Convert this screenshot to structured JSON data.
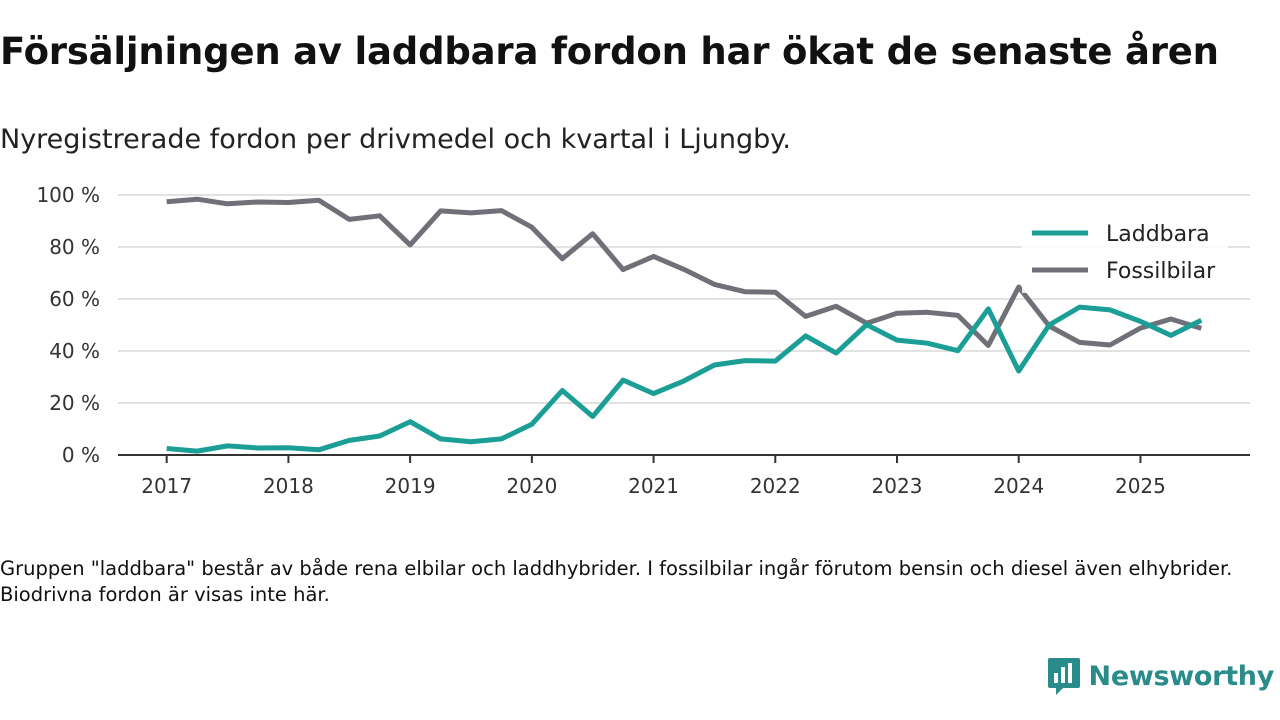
{
  "title": "Försäljningen av laddbara fordon har ökat de senaste åren",
  "subtitle": "Nyregistrerade fordon per drivmedel och kvartal i Ljungby.",
  "footnote": "Gruppen \"laddbara\" består av både rena elbilar och laddhybrider. I fossilbilar ingår förutom bensin och diesel även elhybrider. Biodrivna fordon är visas inte här.",
  "brand": {
    "name": "Newsworthy",
    "color": "#2a8c8a"
  },
  "chart_data": {
    "type": "line",
    "title": "Försäljningen av laddbara fordon har ökat de senaste åren",
    "xlabel": "",
    "ylabel": "",
    "ylim": [
      0,
      100
    ],
    "yticks": [
      0,
      20,
      40,
      60,
      80,
      100
    ],
    "ytick_labels": [
      "0 %",
      "20 %",
      "40 %",
      "60 %",
      "80 %",
      "100 %"
    ],
    "xlim": [
      2016.6,
      2025.9
    ],
    "xticks": [
      2017,
      2018,
      2019,
      2020,
      2021,
      2022,
      2023,
      2024,
      2025
    ],
    "xtick_labels": [
      "2017",
      "2018",
      "2019",
      "2020",
      "2021",
      "2022",
      "2023",
      "2024",
      "2025"
    ],
    "x": [
      2017,
      2017.25,
      2017.5,
      2017.75,
      2018,
      2018.25,
      2018.5,
      2018.75,
      2019,
      2019.25,
      2019.5,
      2019.75,
      2020,
      2020.25,
      2020.5,
      2020.75,
      2021,
      2021.25,
      2021.5,
      2021.75,
      2022,
      2022.25,
      2022.5,
      2022.75,
      2023,
      2023.25,
      2023.5,
      2023.75,
      2024,
      2024.25,
      2024.5,
      2024.75,
      2025,
      2025.25,
      2025.5
    ],
    "legend_position": "top-right",
    "series": [
      {
        "name": "Laddbara",
        "color": "#1a9e96",
        "values": [
          2.5,
          1.5,
          3.5,
          2.7,
          2.8,
          2.0,
          5.6,
          7.3,
          12.8,
          6.2,
          5.1,
          6.2,
          11.8,
          24.8,
          14.8,
          28.8,
          23.6,
          28.5,
          34.6,
          36.3,
          36.1,
          45.8,
          39.2,
          50.1,
          44.2,
          43.0,
          40.1,
          56.2,
          32.3,
          50.0,
          56.9,
          55.8,
          51.4,
          46.0,
          51.8
        ]
      },
      {
        "name": "Fossilbilar",
        "color": "#707078",
        "values": [
          97.4,
          98.4,
          96.6,
          97.3,
          97.1,
          98.0,
          90.6,
          92.0,
          80.8,
          93.9,
          93.1,
          94.0,
          87.6,
          75.5,
          85.1,
          71.3,
          76.4,
          71.4,
          65.6,
          62.8,
          62.6,
          53.3,
          57.2,
          50.7,
          54.5,
          54.9,
          53.7,
          42.1,
          64.6,
          49.6,
          43.3,
          42.3,
          48.8,
          52.3,
          48.7
        ]
      }
    ]
  }
}
